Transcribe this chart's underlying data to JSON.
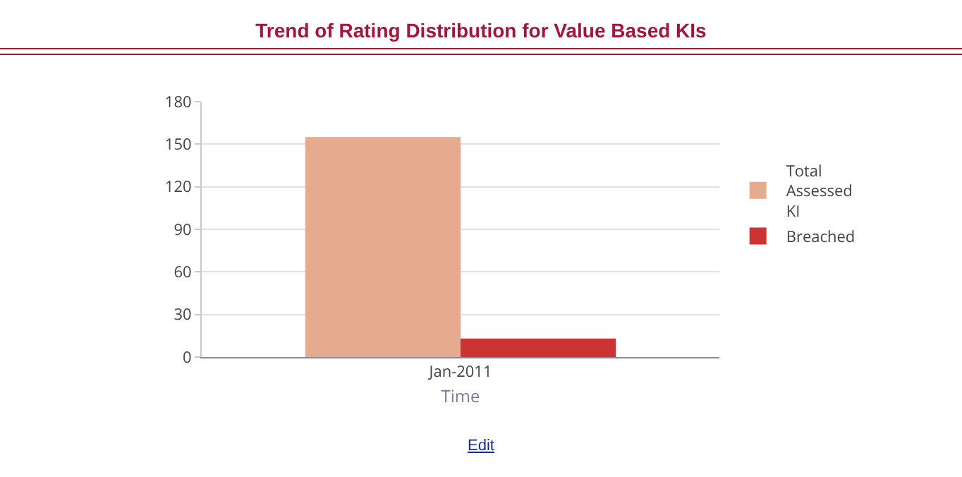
{
  "chart_data": {
    "type": "bar",
    "title": "Trend of Rating Distribution for Value Based KIs",
    "xlabel": "Time",
    "categories": [
      "Jan-2011"
    ],
    "series": [
      {
        "name": "Total Assessed KI",
        "color": "#e6aa8f",
        "values": [
          155
        ]
      },
      {
        "name": "Breached",
        "color": "#cc3333",
        "values": [
          13
        ]
      }
    ],
    "ylim": [
      0,
      180
    ],
    "yticks": [
      0,
      30,
      60,
      90,
      120,
      150,
      180
    ],
    "grid": "y",
    "legend": "right",
    "annotations": [
      "Edit"
    ]
  }
}
